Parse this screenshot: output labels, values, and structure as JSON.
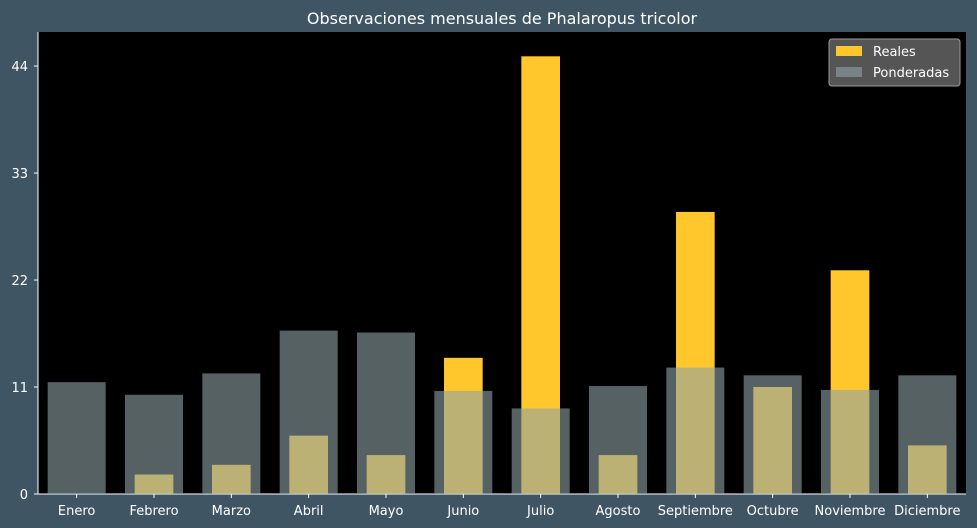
{
  "chart_data": {
    "type": "bar",
    "title": "Observaciones mensuales de Phalaropus tricolor",
    "xlabel": "",
    "ylabel": "",
    "categories": [
      "Enero",
      "Febrero",
      "Marzo",
      "Abril",
      "Mayo",
      "Junio",
      "Julio",
      "Agosto",
      "Septiembre",
      "Octubre",
      "Noviembre",
      "Diciembre"
    ],
    "series": [
      {
        "name": "Reales",
        "color": "#ffc72c",
        "values": [
          0,
          2,
          3,
          6,
          4,
          14,
          45,
          4,
          29,
          11,
          23,
          5
        ]
      },
      {
        "name": "Ponderadas",
        "color": "#8fa2a6",
        "opacity": 0.6,
        "values": [
          11.5,
          10.2,
          12.4,
          16.8,
          16.6,
          10.6,
          8.8,
          11.1,
          13.0,
          12.2,
          10.7,
          12.2
        ]
      }
    ],
    "yticks": [
      0,
      11,
      22,
      33,
      44
    ],
    "ylim": [
      0,
      47.5
    ],
    "grid": false,
    "legend_position": "top-right",
    "colors": {
      "figure_bg": "#3f5563",
      "plot_bg": "#000000",
      "text": "#ffffff"
    }
  }
}
